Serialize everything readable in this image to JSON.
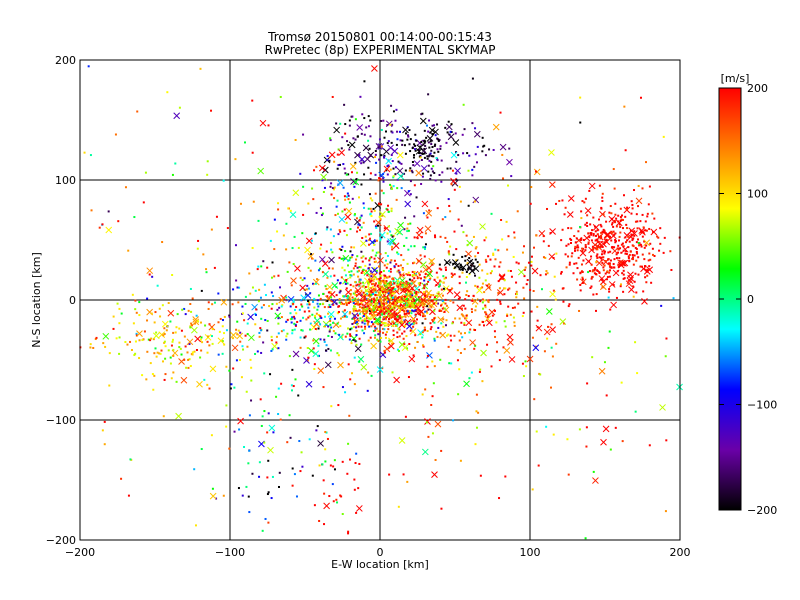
{
  "chart_data": {
    "type": "scatter",
    "title": "Tromsø 20150801 00:14:00-00:15:43",
    "subtitle": "RwPretec (8p) EXPERIMENTAL SKYMAP",
    "xlabel": "E-W location [km]",
    "ylabel": "N-S location [km]",
    "xlim": [
      -200,
      200
    ],
    "ylim": [
      -200,
      200
    ],
    "xticks": [
      -200,
      -100,
      0,
      100,
      200
    ],
    "yticks": [
      -200,
      -100,
      0,
      100,
      200
    ],
    "grid": true,
    "markers": [
      "dot",
      "x"
    ],
    "colorbar": {
      "label": "[m/s]",
      "min": -200,
      "max": 200,
      "ticks": [
        200,
        100,
        0,
        -100,
        -200
      ],
      "colormap": [
        "#000000",
        "#6a00a8",
        "#0000ff",
        "#00ffff",
        "#00ff00",
        "#ffff00",
        "#ff8000",
        "#ff0000"
      ]
    },
    "clusters": [
      {
        "cx": 5,
        "cy": 0,
        "sx": 18,
        "sy": 14,
        "n": 900,
        "vmean": 150,
        "vstd": 80
      },
      {
        "cx": 155,
        "cy": 45,
        "sx": 18,
        "sy": 20,
        "n": 450,
        "vmean": 200,
        "vstd": 15
      },
      {
        "cx": 20,
        "cy": 125,
        "sx": 30,
        "sy": 18,
        "n": 250,
        "vmean": -170,
        "vstd": 40
      },
      {
        "cx": -10,
        "cy": 60,
        "sx": 25,
        "sy": 35,
        "n": 300,
        "vmean": 30,
        "vstd": 120
      },
      {
        "cx": -40,
        "cy": -15,
        "sx": 45,
        "sy": 20,
        "n": 400,
        "vmean": 20,
        "vstd": 110
      },
      {
        "cx": -140,
        "cy": -35,
        "sx": 25,
        "sy": 15,
        "n": 160,
        "vmean": 110,
        "vstd": 40
      },
      {
        "cx": 60,
        "cy": 5,
        "sx": 40,
        "sy": 30,
        "n": 350,
        "vmean": 170,
        "vstd": 50
      },
      {
        "cx": -60,
        "cy": -130,
        "sx": 20,
        "sy": 30,
        "n": 60,
        "vmean": -80,
        "vstd": 120
      },
      {
        "cx": -30,
        "cy": -170,
        "sx": 15,
        "sy": 20,
        "n": 25,
        "vmean": 200,
        "vstd": 10
      },
      {
        "cx": 0,
        "cy": 0,
        "sx": 120,
        "sy": 100,
        "n": 450,
        "vmean": 120,
        "vstd": 110
      },
      {
        "cx": 55,
        "cy": 28,
        "sx": 5,
        "sy": 4,
        "n": 35,
        "vmean": -200,
        "vstd": 5
      },
      {
        "cx": 30,
        "cy": 130,
        "sx": 8,
        "sy": 8,
        "n": 40,
        "vmean": -200,
        "vstd": 5
      }
    ]
  }
}
